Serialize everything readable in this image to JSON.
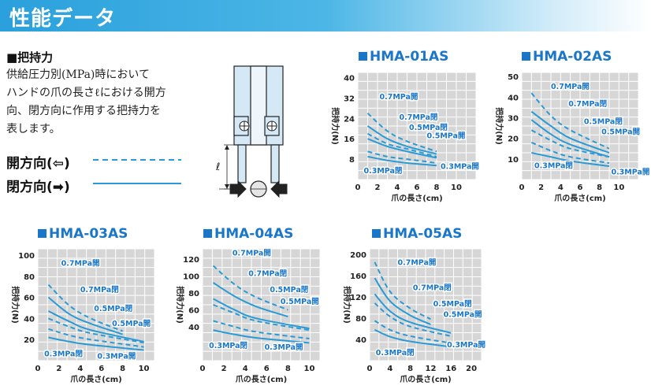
{
  "header": {
    "title": "性能データ"
  },
  "section": {
    "title": "■把持力",
    "desc_lines": [
      "供給圧力別(MPa)時において",
      "ハンドの爪の長さℓにおける開方",
      "向、閉方向に作用する把持力を",
      "表します。"
    ]
  },
  "legend": {
    "open_label": "開方向(⇦)",
    "close_label": "閉方向(➡)"
  },
  "diagram": {
    "length_label": "ℓ"
  },
  "colors": {
    "accent": "#1a76c8",
    "series": "#2a9ad6",
    "grid_bg": "#d6d6d6"
  },
  "chart_data": [
    {
      "type": "line",
      "title": "HMA-01AS",
      "xlabel": "爪の長さ(cm)",
      "ylabel": "把持力(N)",
      "xlim": [
        0,
        12
      ],
      "ylim": [
        0,
        42
      ],
      "xticks": [
        0,
        2,
        4,
        6,
        8,
        10
      ],
      "yticks": [
        8,
        16,
        24,
        32,
        40
      ],
      "grid": true,
      "series": [
        {
          "name": "0.7MPa開",
          "style": "dashed",
          "x": [
            1,
            3,
            5,
            8
          ],
          "y": [
            26,
            19,
            15,
            11
          ]
        },
        {
          "name": "0.7MPa閉",
          "style": "solid",
          "x": [
            1,
            3,
            5,
            8
          ],
          "y": [
            21,
            16,
            13,
            10
          ]
        },
        {
          "name": "0.5MPa閉",
          "style": "solid",
          "x": [
            1,
            3,
            5,
            8
          ],
          "y": [
            16,
            13,
            11,
            8.5
          ]
        },
        {
          "name": "0.5MPa開",
          "style": "dashed",
          "x": [
            1,
            3,
            5,
            8
          ],
          "y": [
            18,
            14,
            12,
            9
          ]
        },
        {
          "name": "0.3MPa開",
          "style": "dashed",
          "x": [
            1,
            3,
            5,
            8
          ],
          "y": [
            11,
            9,
            8,
            6.5
          ]
        },
        {
          "name": "0.3MPa閉",
          "style": "solid",
          "x": [
            1,
            3,
            5,
            8
          ],
          "y": [
            9,
            7.5,
            6.5,
            5.5
          ]
        }
      ],
      "labels": [
        {
          "text": "0.7MPa開",
          "x": 2.2,
          "y": 31.5
        },
        {
          "text": "0.7MPa閉",
          "x": 4.2,
          "y": 23.5
        },
        {
          "text": "0.5MPa閉",
          "x": 5.2,
          "y": 19.5
        },
        {
          "text": "0.5MPa開",
          "x": 7,
          "y": 16.2
        },
        {
          "text": "0.3MPa閉",
          "x": 0.6,
          "y": 2.5
        },
        {
          "text": "0.3MPa開",
          "x": 8.4,
          "y": 4.2
        }
      ]
    },
    {
      "type": "line",
      "title": "HMA-02AS",
      "xlabel": "爪の長さ(cm)",
      "ylabel": "把持力(N)",
      "xlim": [
        0,
        12
      ],
      "ylim": [
        0,
        52
      ],
      "xticks": [
        0,
        2,
        4,
        6,
        8,
        10
      ],
      "yticks": [
        10,
        20,
        30,
        40,
        50
      ],
      "grid": true,
      "series": [
        {
          "name": "0.7MPa開",
          "style": "dashed",
          "x": [
            1,
            3,
            5,
            9
          ],
          "y": [
            42,
            31,
            24,
            15
          ]
        },
        {
          "name": "0.7MPa閉",
          "style": "solid",
          "x": [
            1,
            3,
            5,
            9
          ],
          "y": [
            33,
            26,
            20,
            13
          ]
        },
        {
          "name": "0.5MPa閉",
          "style": "solid",
          "x": [
            1,
            3,
            5,
            9
          ],
          "y": [
            29,
            22,
            17,
            11
          ]
        },
        {
          "name": "0.5MPa開",
          "style": "dashed",
          "x": [
            1,
            3,
            5,
            9
          ],
          "y": [
            24,
            19,
            15,
            11
          ]
        },
        {
          "name": "0.3MPa開",
          "style": "dashed",
          "x": [
            1,
            3,
            5,
            9
          ],
          "y": [
            18,
            14,
            11,
            8
          ]
        },
        {
          "name": "0.3MPa閉",
          "style": "solid",
          "x": [
            1,
            3,
            5,
            9
          ],
          "y": [
            13,
            11,
            9,
            6.5
          ]
        }
      ],
      "labels": [
        {
          "text": "0.7MPa開",
          "x": 3,
          "y": 44
        },
        {
          "text": "0.7MPa閉",
          "x": 4.8,
          "y": 35.5
        },
        {
          "text": "0.5MPa閉",
          "x": 6.4,
          "y": 27
        },
        {
          "text": "0.5MPa開",
          "x": 8.2,
          "y": 22
        },
        {
          "text": "0.3MPa閉",
          "x": 1.3,
          "y": 5.5
        },
        {
          "text": "0.3MPa開",
          "x": 9.2,
          "y": 2.5
        }
      ]
    },
    {
      "type": "line",
      "title": "HMA-03AS",
      "xlabel": "爪の長さ(cm)",
      "ylabel": "把持力(N)",
      "xlim": [
        0,
        11
      ],
      "ylim": [
        0,
        106
      ],
      "xticks": [
        0,
        2,
        4,
        6,
        8,
        10
      ],
      "yticks": [
        20,
        40,
        60,
        80,
        100
      ],
      "grid": true,
      "series": [
        {
          "name": "0.7MPa開",
          "style": "dashed",
          "x": [
            1,
            3,
            5,
            8
          ],
          "y": [
            72,
            52,
            40,
            28
          ]
        },
        {
          "name": "0.7MPa閉",
          "style": "solid",
          "x": [
            1,
            3,
            5,
            8
          ],
          "y": [
            60,
            44,
            35,
            25
          ]
        },
        {
          "name": "0.5MPa閉",
          "style": "solid",
          "x": [
            1,
            3,
            5,
            10
          ],
          "y": [
            47,
            37,
            29,
            18
          ]
        },
        {
          "name": "0.5MPa開",
          "style": "dashed",
          "x": [
            1,
            3,
            5,
            10
          ],
          "y": [
            40,
            32,
            26,
            17
          ]
        },
        {
          "name": "0.3MPa開",
          "style": "dashed",
          "x": [
            1,
            3,
            5,
            10
          ],
          "y": [
            30,
            24,
            20,
            13
          ]
        },
        {
          "name": "0.3MPa閉",
          "style": "solid",
          "x": [
            1,
            3,
            5,
            10
          ],
          "y": [
            22,
            18,
            15,
            10
          ]
        }
      ],
      "labels": [
        {
          "text": "0.7MPa開",
          "x": 2.2,
          "y": 90
        },
        {
          "text": "0.7MPa閉",
          "x": 4,
          "y": 65
        },
        {
          "text": "0.5MPa閉",
          "x": 5.3,
          "y": 47
        },
        {
          "text": "0.5MPa開",
          "x": 7,
          "y": 33
        },
        {
          "text": "0.3MPa閉",
          "x": 0.6,
          "y": 4
        },
        {
          "text": "0.3MPa開",
          "x": 5.6,
          "y": 2
        }
      ]
    },
    {
      "type": "line",
      "title": "HMA-04AS",
      "xlabel": "爪の長さ(cm)",
      "ylabel": "把持力(N)",
      "xlim": [
        0,
        11
      ],
      "ylim": [
        0,
        132
      ],
      "xticks": [
        0,
        2,
        4,
        6,
        8,
        10
      ],
      "yticks": [
        40,
        60,
        80,
        100,
        120
      ],
      "grid": true,
      "series": [
        {
          "name": "0.7MPa開",
          "style": "dashed",
          "x": [
            1,
            3,
            5,
            8
          ],
          "y": [
            112,
            90,
            75,
            60
          ]
        },
        {
          "name": "0.7MPa閉",
          "style": "solid",
          "x": [
            1,
            3,
            5,
            8
          ],
          "y": [
            92,
            76,
            64,
            52
          ]
        },
        {
          "name": "0.5MPa閉",
          "style": "solid",
          "x": [
            1,
            3,
            5,
            10
          ],
          "y": [
            73,
            60,
            50,
            38
          ]
        },
        {
          "name": "0.5MPa開",
          "style": "dashed",
          "x": [
            1,
            3,
            5,
            10
          ],
          "y": [
            66,
            56,
            47,
            36
          ]
        },
        {
          "name": "0.3MPa開",
          "style": "dashed",
          "x": [
            1,
            3,
            5,
            10
          ],
          "y": [
            47,
            40,
            34,
            26
          ]
        },
        {
          "name": "0.3MPa閉",
          "style": "solid",
          "x": [
            1,
            3,
            5,
            10
          ],
          "y": [
            36,
            31,
            27,
            21
          ]
        }
      ],
      "labels": [
        {
          "text": "0.7MPa開",
          "x": 2.8,
          "y": 124
        },
        {
          "text": "0.7MPa閉",
          "x": 4.3,
          "y": 100
        },
        {
          "text": "0.5MPa閉",
          "x": 6.3,
          "y": 81
        },
        {
          "text": "0.5MPa開",
          "x": 7.3,
          "y": 67
        },
        {
          "text": "0.3MPa閉",
          "x": 0.6,
          "y": 15
        },
        {
          "text": "0.3MPa開",
          "x": 5.8,
          "y": 13
        }
      ]
    },
    {
      "type": "line",
      "title": "HMA-05AS",
      "xlabel": "爪の長さ(cm)",
      "ylabel": "把持力(N)",
      "xlim": [
        0,
        22
      ],
      "ylim": [
        0,
        210
      ],
      "xticks": [
        0,
        4,
        8,
        12,
        16,
        20
      ],
      "yticks": [
        40,
        80,
        120,
        160,
        200
      ],
      "grid": true,
      "series": [
        {
          "name": "0.7MPa開",
          "style": "dashed",
          "x": [
            1,
            4,
            8,
            12
          ],
          "y": [
            185,
            130,
            98,
            78
          ]
        },
        {
          "name": "0.7MPa閉",
          "style": "solid",
          "x": [
            1,
            4,
            8,
            12
          ],
          "y": [
            155,
            112,
            85,
            68
          ]
        },
        {
          "name": "0.5MPa閉",
          "style": "solid",
          "x": [
            1,
            4,
            8,
            16
          ],
          "y": [
            125,
            93,
            72,
            52
          ]
        },
        {
          "name": "0.5MPa開",
          "style": "dashed",
          "x": [
            1,
            4,
            8,
            16
          ],
          "y": [
            108,
            83,
            64,
            46
          ]
        },
        {
          "name": "0.3MPa開",
          "style": "dashed",
          "x": [
            1,
            4,
            8,
            16
          ],
          "y": [
            75,
            58,
            46,
            33
          ]
        },
        {
          "name": "0.3MPa閉",
          "style": "solid",
          "x": [
            1,
            4,
            8,
            16
          ],
          "y": [
            58,
            45,
            36,
            26
          ]
        }
      ],
      "labels": [
        {
          "text": "0.7MPa開",
          "x": 5.5,
          "y": 180
        },
        {
          "text": "0.7MPa閉",
          "x": 8.5,
          "y": 132
        },
        {
          "text": "0.5MPa閉",
          "x": 12.5,
          "y": 102
        },
        {
          "text": "0.5MPa開",
          "x": 14.5,
          "y": 82
        },
        {
          "text": "0.3MPa閉",
          "x": 1.2,
          "y": 10
        },
        {
          "text": "0.3MPa開",
          "x": 15.2,
          "y": 25
        }
      ]
    }
  ]
}
